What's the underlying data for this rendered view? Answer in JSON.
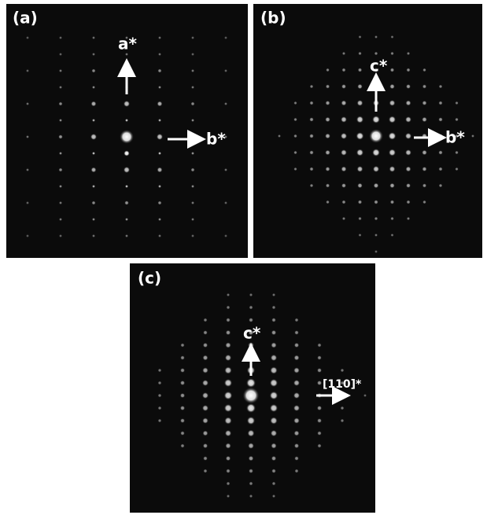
{
  "panels": [
    {
      "label": "(a)",
      "axes": [
        "a*",
        "b*"
      ]
    },
    {
      "label": "(b)",
      "axes": [
        "c*",
        "b*"
      ]
    },
    {
      "label": "(c)",
      "axes": [
        "c*",
        "[110]*"
      ]
    }
  ]
}
